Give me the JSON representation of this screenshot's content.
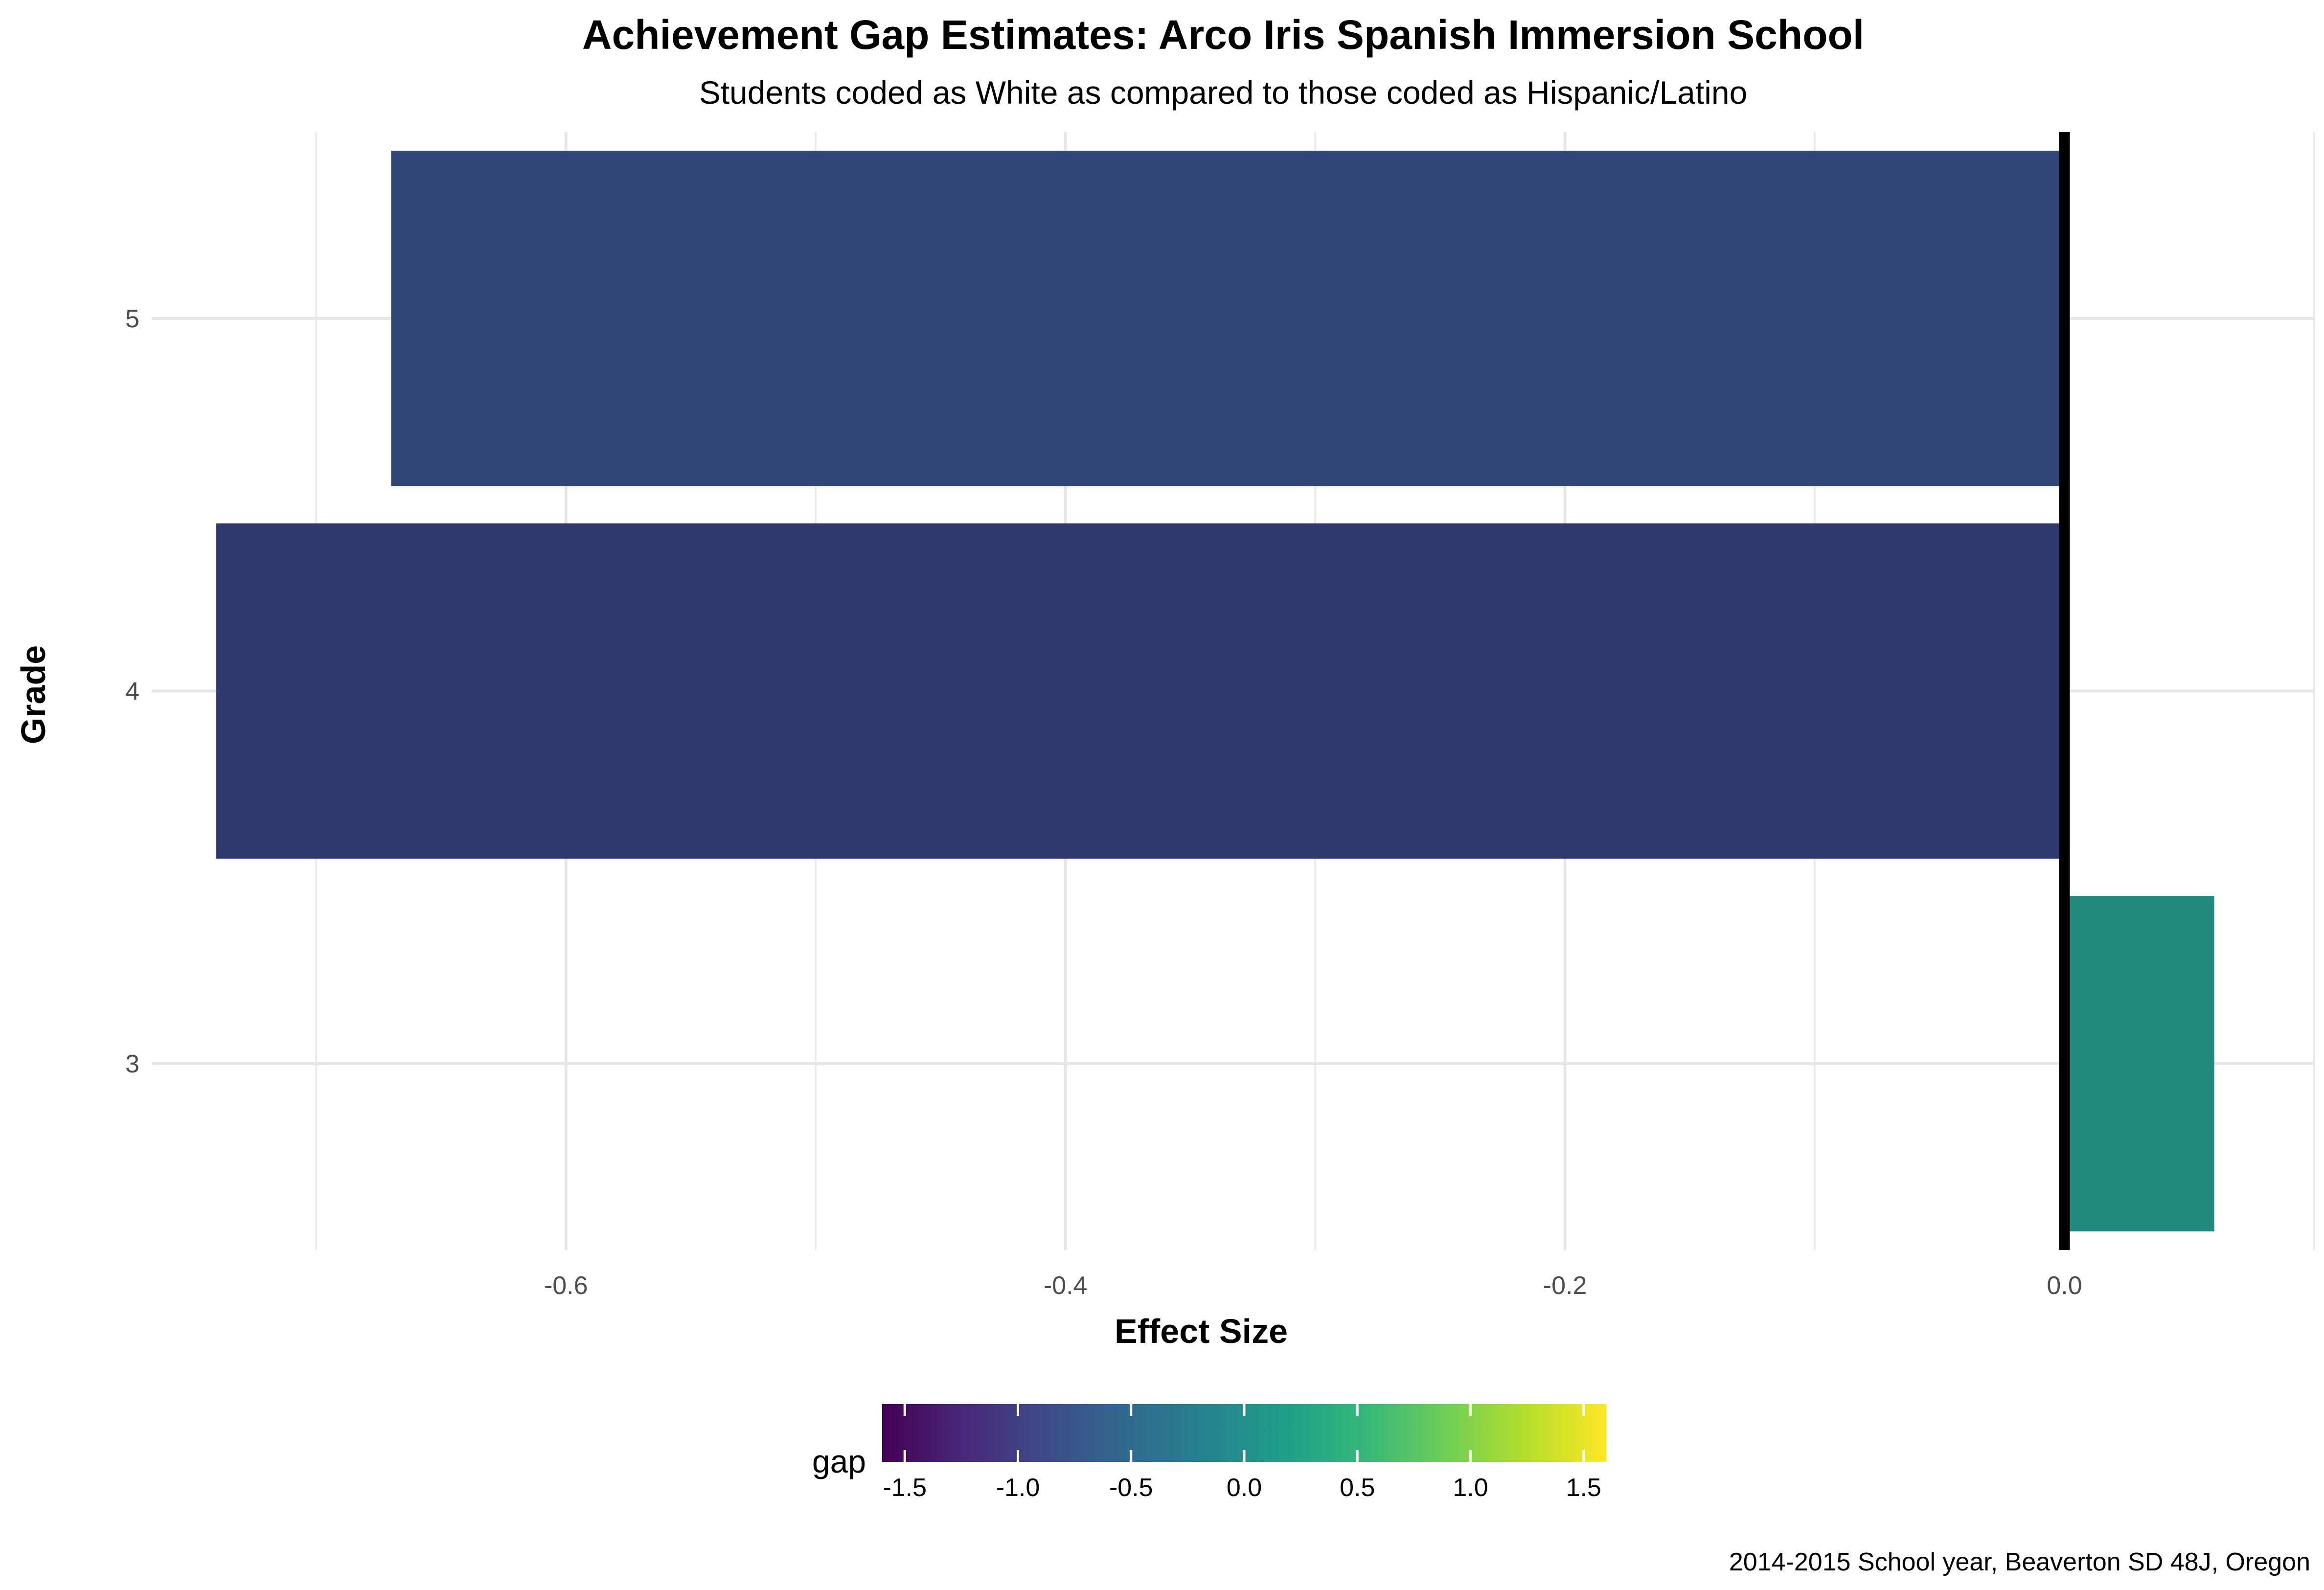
{
  "chart_data": {
    "type": "bar",
    "orientation": "horizontal",
    "title": "Achievement Gap Estimates: Arco Iris Spanish Immersion School",
    "subtitle": "Students coded as White as compared to those coded as Hispanic/Latino",
    "xlabel": "Effect Size",
    "ylabel": "Grade",
    "categories": [
      "3",
      "4",
      "5"
    ],
    "values": [
      0.06,
      -0.74,
      -0.67
    ],
    "xlim": [
      -0.76,
      0.1
    ],
    "x_ticks": [
      -0.6,
      -0.4,
      -0.2,
      0.0
    ],
    "x_tick_labels": [
      "-0.6",
      "-0.4",
      "-0.2",
      "0.0"
    ],
    "reference_line": 0,
    "grid": true,
    "colors": [
      "#21897e",
      "#30396f",
      "#2f4676"
    ],
    "legend": {
      "title": "gap",
      "placement": "bottom",
      "type": "colorbar",
      "range": [
        -1.6,
        1.6
      ],
      "ticks": [
        -1.5,
        -1.0,
        -0.5,
        0.0,
        0.5,
        1.0,
        1.5
      ],
      "tick_labels": [
        "-1.5",
        "-1.0",
        "-0.5",
        "0.0",
        "0.5",
        "1.0",
        "1.5"
      ],
      "palette": [
        "#440154",
        "#482878",
        "#3e4a89",
        "#31688e",
        "#26828e",
        "#1f9e89",
        "#35b779",
        "#6ece58",
        "#b5de2b",
        "#fde725"
      ]
    },
    "caption": "2014-2015 School year, Beaverton SD 48J, Oregon"
  }
}
